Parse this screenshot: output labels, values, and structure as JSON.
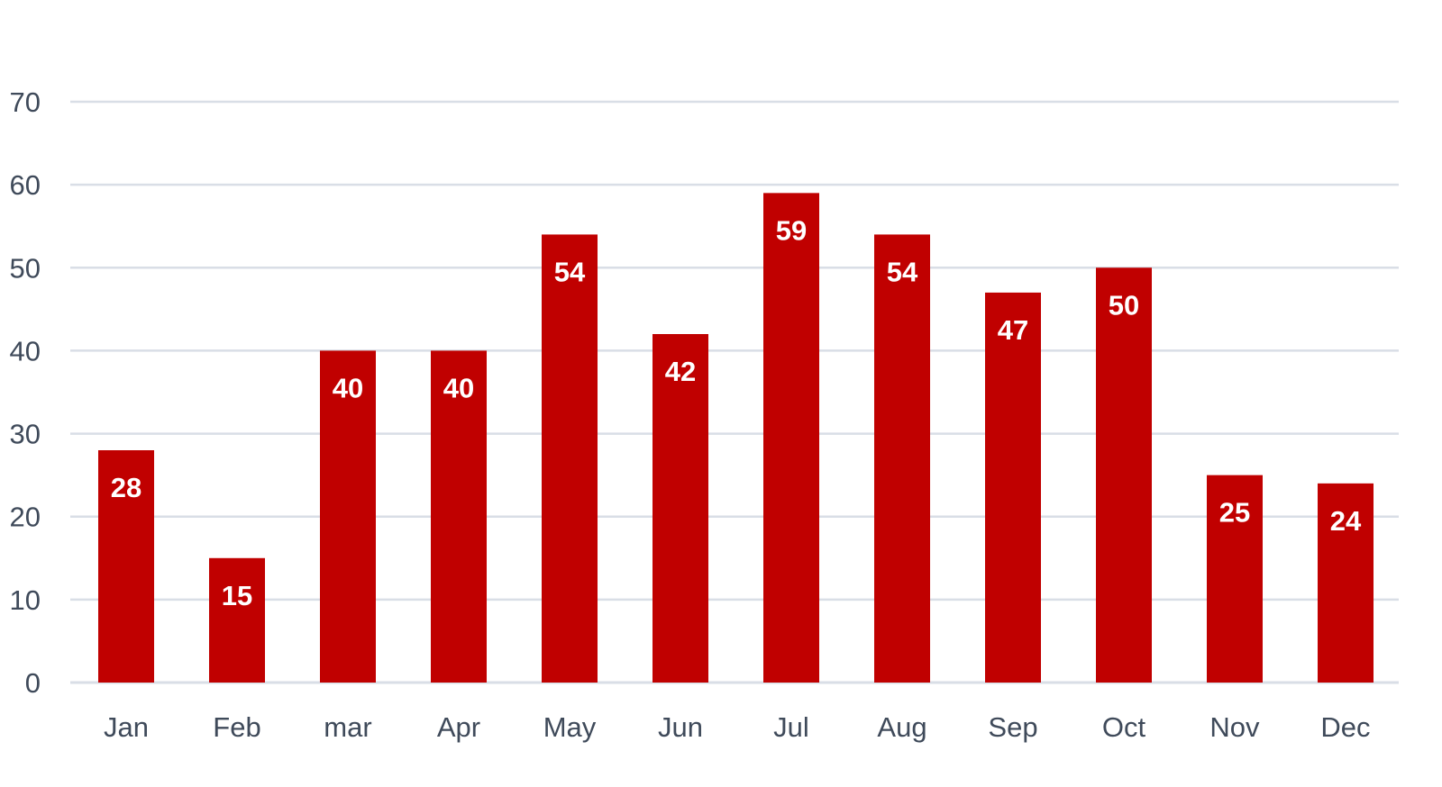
{
  "chart_data": {
    "type": "bar",
    "categories": [
      "Jan",
      "Feb",
      "mar",
      "Apr",
      "May",
      "Jun",
      "Jul",
      "Aug",
      "Sep",
      "Oct",
      "Nov",
      "Dec"
    ],
    "values": [
      28,
      15,
      40,
      40,
      54,
      42,
      59,
      54,
      47,
      50,
      25,
      24
    ],
    "ylim": [
      0,
      70
    ],
    "yticks": [
      0,
      10,
      20,
      30,
      40,
      50,
      60,
      70
    ],
    "grid": true,
    "data_labels": true,
    "legend": "none",
    "colors": {
      "bar": "#c00000",
      "grid": "#d9dee6",
      "tick_text": "#3f4a5a",
      "data_label_text": "#ffffff"
    }
  }
}
